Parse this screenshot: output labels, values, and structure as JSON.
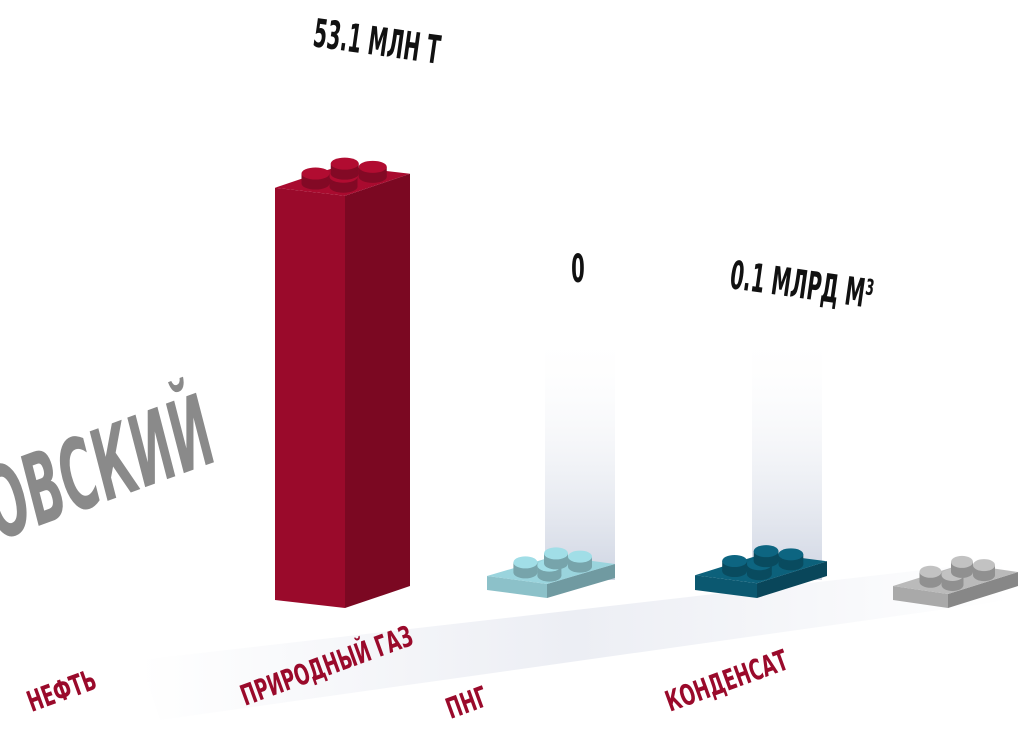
{
  "chart_data": {
    "type": "bar",
    "title": "ОВСКИЙ",
    "categories": [
      "НЕФТЬ",
      "ПРИРОДНЫЙ ГАЗ",
      "ПНГ",
      "КОНДЕНСАТ"
    ],
    "values": [
      53.1,
      0,
      0.1,
      null
    ],
    "value_labels": [
      "53.1  МЛН Т",
      "0",
      "0.1 МЛРД М³",
      null
    ],
    "colors": [
      "#9a0a2b",
      "#8cc1c9",
      "#0b5870",
      "#a9a9a9"
    ]
  }
}
